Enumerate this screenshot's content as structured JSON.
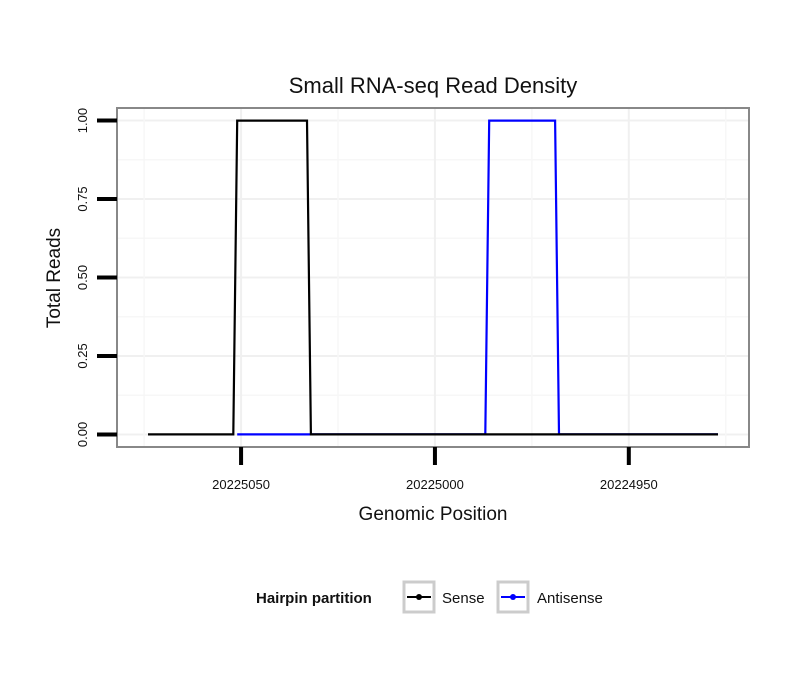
{
  "chart_data": {
    "type": "line",
    "title": "Small RNA-seq Read Density",
    "xlabel": "Genomic Position",
    "ylabel": "Total Reads",
    "x_reversed": true,
    "xlim": [
      20225082,
      20224919
    ],
    "ylim": [
      -0.04,
      1.04
    ],
    "xticks": [
      20225050,
      20225000,
      20224950
    ],
    "xtick_labels": [
      "20225050",
      "20225000",
      "20224950"
    ],
    "yticks": [
      0,
      0.25,
      0.5,
      0.75,
      1
    ],
    "ytick_labels": [
      "0.00",
      "0.25",
      "0.50",
      "0.75",
      "1.00"
    ],
    "grid": true,
    "legend_title": "Hairpin partition",
    "legend_position": "bottom",
    "series": [
      {
        "name": "Sense",
        "color": "#000000",
        "x": [
          20225074,
          20225052,
          20225051,
          20225033,
          20225032,
          20224927
        ],
        "y": [
          0,
          0,
          1,
          1,
          0,
          0
        ]
      },
      {
        "name": "Antisense",
        "color": "#0000ff",
        "x": [
          20225051,
          20224987,
          20224986,
          20224969,
          20224968,
          20224927
        ],
        "y": [
          0,
          0,
          1,
          1,
          0,
          0
        ]
      }
    ]
  }
}
